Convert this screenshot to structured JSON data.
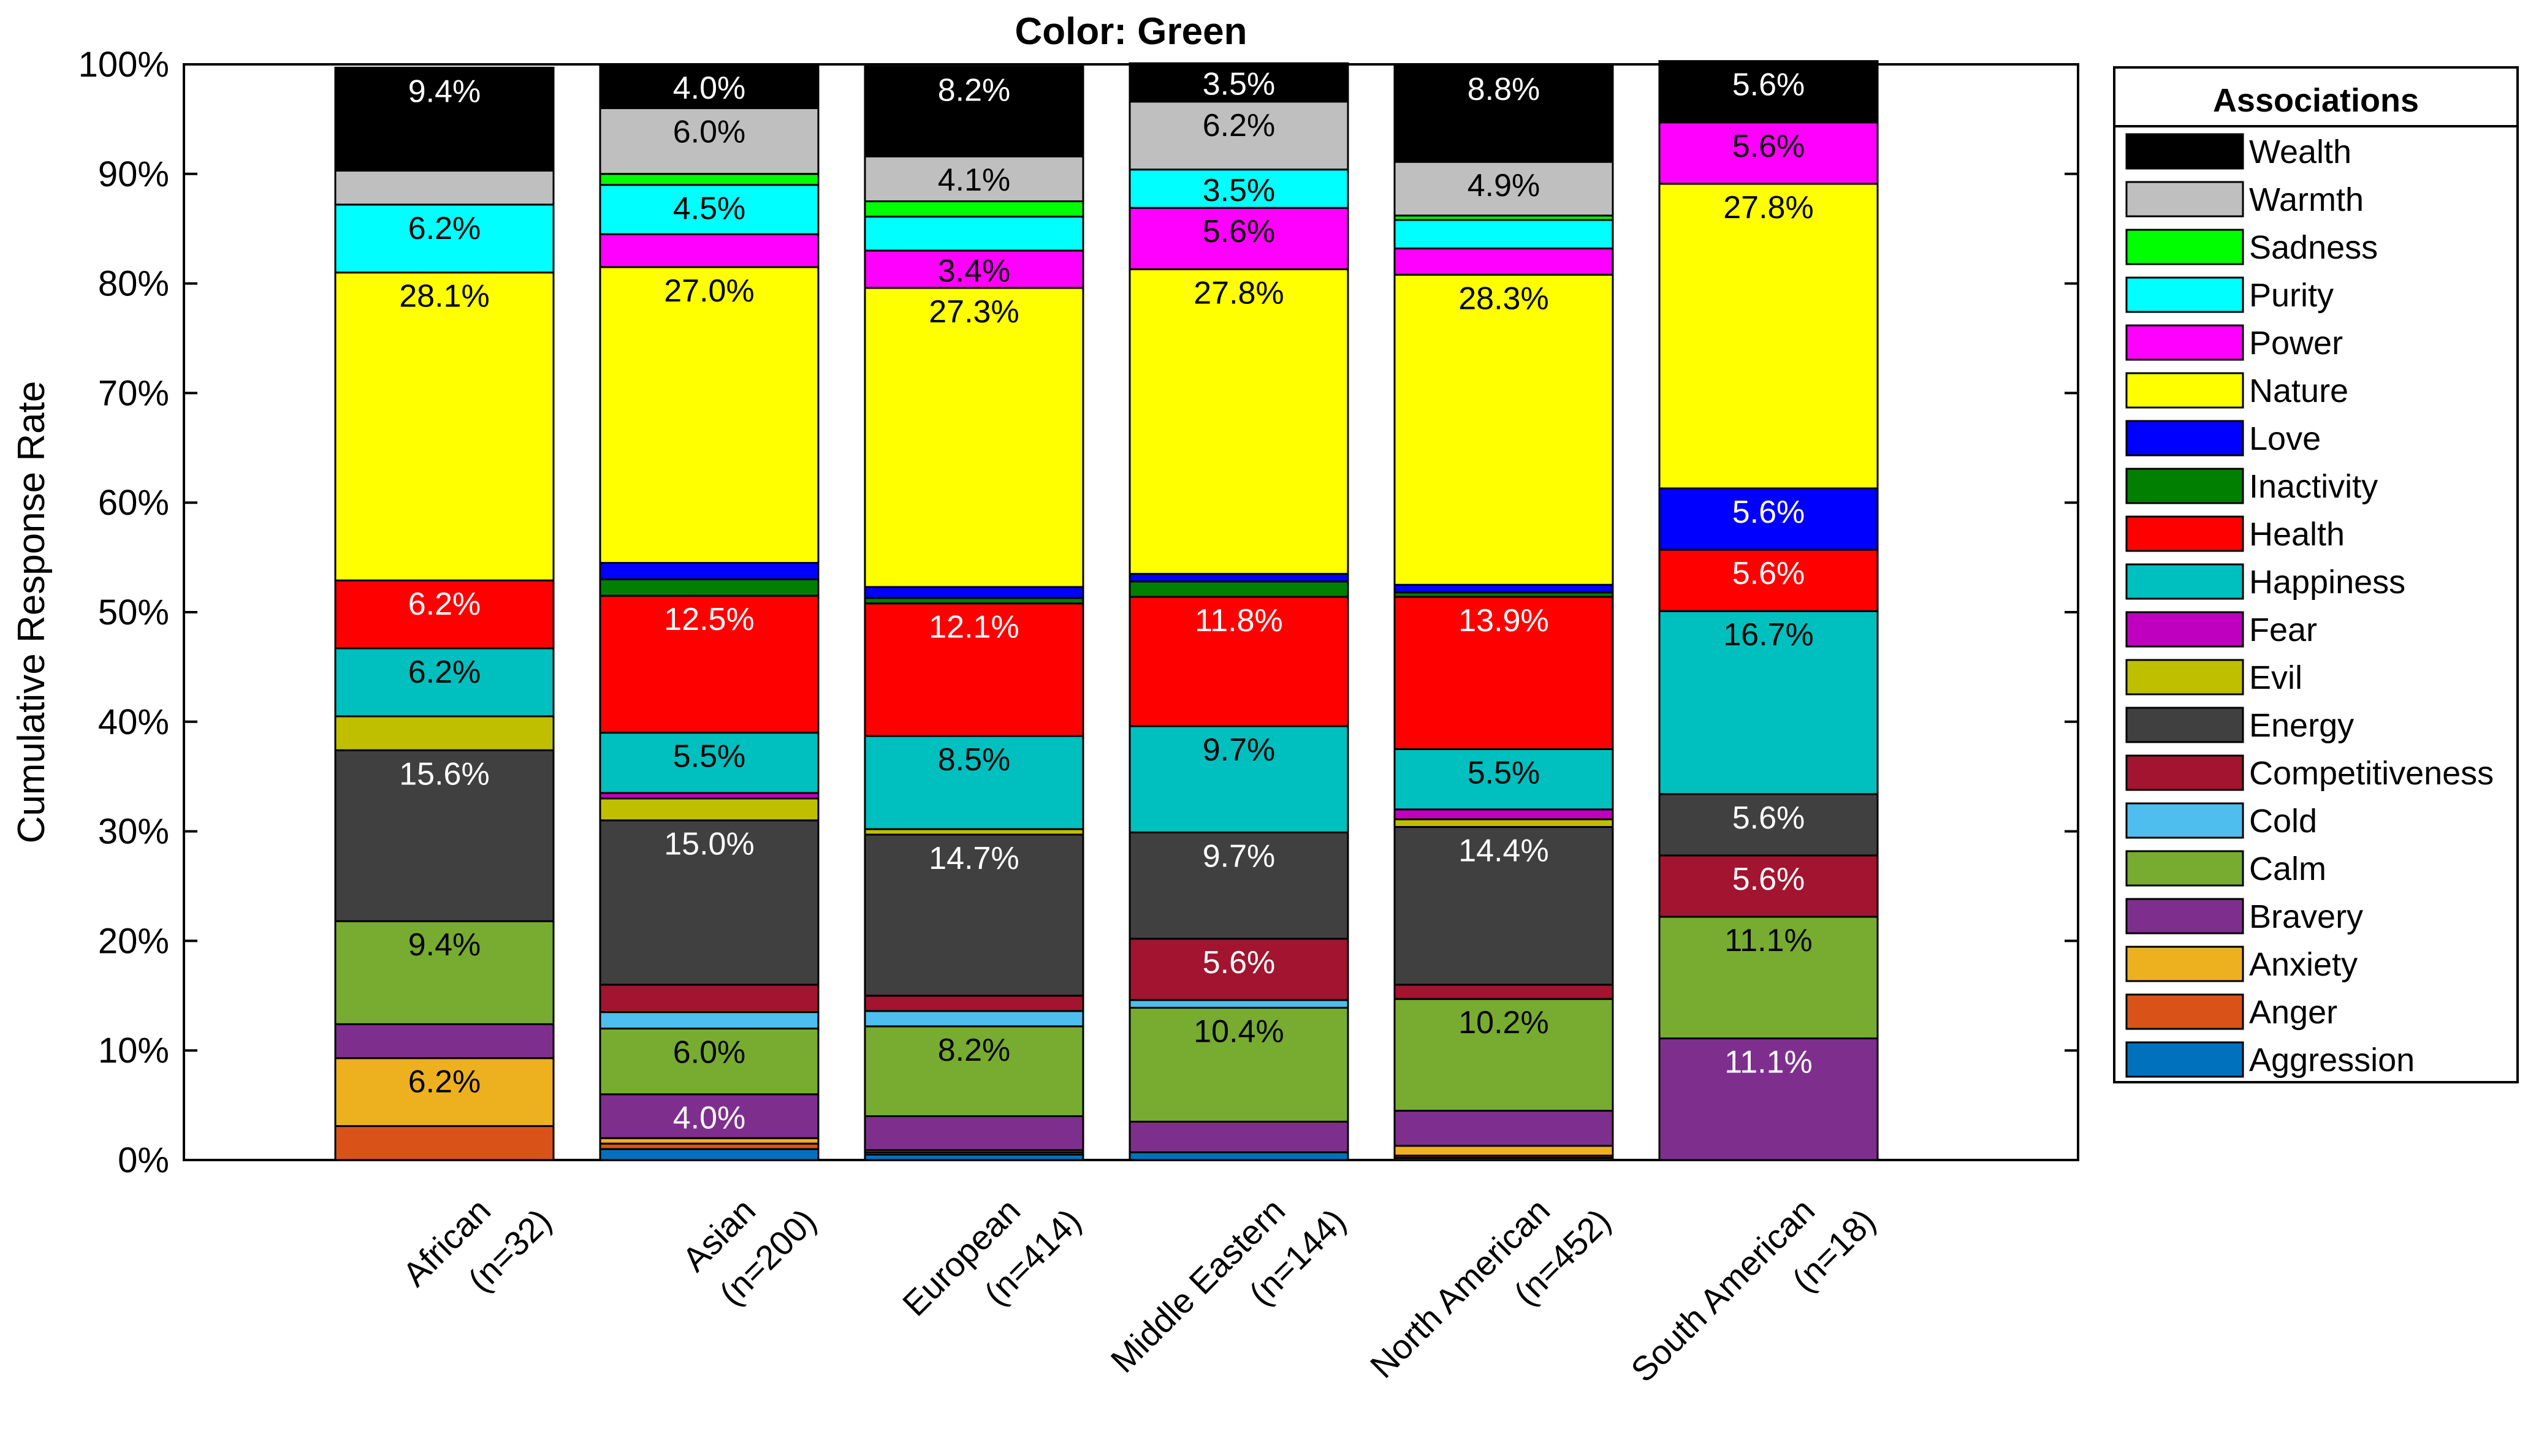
{
  "chart_data": {
    "type": "bar",
    "stacked": true,
    "title": "Color: Green",
    "xlabel": "",
    "ylabel": "Cumulative Response Rate",
    "ylim": [
      0,
      100
    ],
    "yticks": [
      "0%",
      "10%",
      "20%",
      "30%",
      "40%",
      "50%",
      "60%",
      "70%",
      "80%",
      "90%",
      "100%"
    ],
    "legend_title": "Associations",
    "legend_position": "right",
    "categories": [
      [
        "African",
        "(n=32)"
      ],
      [
        "Asian",
        "(n=200)"
      ],
      [
        "European",
        "(n=414)"
      ],
      [
        "Middle Eastern",
        "(n=144)"
      ],
      [
        "North American",
        "(n=452)"
      ],
      [
        "South American",
        "(n=18)"
      ]
    ],
    "series": [
      {
        "name": "Aggression",
        "color": "#0072BD",
        "text_color": "#000000",
        "values": [
          0.0,
          1.0,
          0.5,
          0.7,
          0.2,
          0.0
        ]
      },
      {
        "name": "Anger",
        "color": "#D95319",
        "text_color": "#000000",
        "values": [
          3.1,
          0.5,
          0.2,
          0.0,
          0.2,
          0.0
        ]
      },
      {
        "name": "Anxiety",
        "color": "#EDB120",
        "text_color": "#000000",
        "values": [
          6.2,
          0.5,
          0.2,
          0.0,
          0.9,
          0.0
        ]
      },
      {
        "name": "Bravery",
        "color": "#7E2F8E",
        "text_color": "#ffffff",
        "values": [
          3.1,
          4.0,
          3.1,
          2.8,
          3.2,
          11.1
        ]
      },
      {
        "name": "Calm",
        "color": "#77AC30",
        "text_color": "#000000",
        "values": [
          9.4,
          6.0,
          8.2,
          10.4,
          10.2,
          11.1
        ]
      },
      {
        "name": "Cold",
        "color": "#4DBEEE",
        "text_color": "#000000",
        "values": [
          0.0,
          1.5,
          1.4,
          0.7,
          0.0,
          0.0
        ]
      },
      {
        "name": "Competitiveness",
        "color": "#A2142F",
        "text_color": "#ffffff",
        "values": [
          0.0,
          2.5,
          1.4,
          5.6,
          1.3,
          5.6
        ]
      },
      {
        "name": "Energy",
        "color": "#404040",
        "text_color": "#ffffff",
        "values": [
          15.6,
          15.0,
          14.7,
          9.7,
          14.4,
          5.6
        ]
      },
      {
        "name": "Evil",
        "color": "#BFBF00",
        "text_color": "#000000",
        "values": [
          3.1,
          2.0,
          0.5,
          0.0,
          0.7,
          0.0
        ]
      },
      {
        "name": "Fear",
        "color": "#BF00BF",
        "text_color": "#000000",
        "values": [
          0.0,
          0.5,
          0.0,
          0.0,
          0.9,
          0.0
        ]
      },
      {
        "name": "Happiness",
        "color": "#00BFBF",
        "text_color": "#000000",
        "values": [
          6.2,
          5.5,
          8.5,
          9.7,
          5.5,
          16.7
        ]
      },
      {
        "name": "Health",
        "color": "#FF0000",
        "text_color": "#ffffff",
        "values": [
          6.2,
          12.5,
          12.1,
          11.8,
          13.9,
          5.6
        ]
      },
      {
        "name": "Inactivity",
        "color": "#007F00",
        "text_color": "#ffffff",
        "values": [
          0.0,
          1.5,
          0.5,
          1.4,
          0.4,
          0.0
        ]
      },
      {
        "name": "Love",
        "color": "#0000FF",
        "text_color": "#ffffff",
        "values": [
          0.0,
          1.5,
          1.0,
          0.7,
          0.7,
          5.6
        ]
      },
      {
        "name": "Nature",
        "color": "#FFFF00",
        "text_color": "#000000",
        "values": [
          28.1,
          27.0,
          27.3,
          27.8,
          28.3,
          27.8
        ]
      },
      {
        "name": "Power",
        "color": "#FF00FF",
        "text_color": "#000000",
        "values": [
          0.0,
          3.0,
          3.4,
          5.6,
          2.4,
          5.6
        ]
      },
      {
        "name": "Purity",
        "color": "#00FFFF",
        "text_color": "#000000",
        "values": [
          6.2,
          4.5,
          3.1,
          3.5,
          2.6,
          0.0
        ]
      },
      {
        "name": "Sadness",
        "color": "#00FF00",
        "text_color": "#000000",
        "values": [
          0.0,
          1.0,
          1.4,
          0.0,
          0.4,
          0.0
        ]
      },
      {
        "name": "Warmth",
        "color": "#BFBFBF",
        "text_color": "#000000",
        "values": [
          3.1,
          6.0,
          4.1,
          6.2,
          4.9,
          0.0
        ]
      },
      {
        "name": "Wealth",
        "color": "#000000",
        "text_color": "#ffffff",
        "values": [
          9.4,
          4.0,
          8.2,
          3.5,
          8.8,
          5.6
        ]
      }
    ],
    "value_labels": [
      {
        "category": 0,
        "series": "Anxiety",
        "text": "6.2%"
      },
      {
        "category": 0,
        "series": "Calm",
        "text": "9.4%"
      },
      {
        "category": 0,
        "series": "Energy",
        "text": "15.6%"
      },
      {
        "category": 0,
        "series": "Happiness",
        "text": "6.2%"
      },
      {
        "category": 0,
        "series": "Health",
        "text": "6.2%"
      },
      {
        "category": 0,
        "series": "Nature",
        "text": "28.1%"
      },
      {
        "category": 0,
        "series": "Purity",
        "text": "6.2%"
      },
      {
        "category": 0,
        "series": "Wealth",
        "text": "9.4%"
      },
      {
        "category": 1,
        "series": "Bravery",
        "text": "4.0%"
      },
      {
        "category": 1,
        "series": "Calm",
        "text": "6.0%"
      },
      {
        "category": 1,
        "series": "Energy",
        "text": "15.0%"
      },
      {
        "category": 1,
        "series": "Happiness",
        "text": "5.5%"
      },
      {
        "category": 1,
        "series": "Health",
        "text": "12.5%"
      },
      {
        "category": 1,
        "series": "Nature",
        "text": "27.0%"
      },
      {
        "category": 1,
        "series": "Purity",
        "text": "4.5%"
      },
      {
        "category": 1,
        "series": "Warmth",
        "text": "6.0%"
      },
      {
        "category": 1,
        "series": "Wealth",
        "text": "4.0%"
      },
      {
        "category": 2,
        "series": "Calm",
        "text": "8.2%"
      },
      {
        "category": 2,
        "series": "Energy",
        "text": "14.7%"
      },
      {
        "category": 2,
        "series": "Happiness",
        "text": "8.5%"
      },
      {
        "category": 2,
        "series": "Health",
        "text": "12.1%"
      },
      {
        "category": 2,
        "series": "Nature",
        "text": "27.3%"
      },
      {
        "category": 2,
        "series": "Power",
        "text": "3.4%"
      },
      {
        "category": 2,
        "series": "Warmth",
        "text": "4.1%"
      },
      {
        "category": 2,
        "series": "Wealth",
        "text": "8.2%"
      },
      {
        "category": 3,
        "series": "Calm",
        "text": "10.4%"
      },
      {
        "category": 3,
        "series": "Competitiveness",
        "text": "5.6%"
      },
      {
        "category": 3,
        "series": "Energy",
        "text": "9.7%"
      },
      {
        "category": 3,
        "series": "Happiness",
        "text": "9.7%"
      },
      {
        "category": 3,
        "series": "Health",
        "text": "11.8%"
      },
      {
        "category": 3,
        "series": "Nature",
        "text": "27.8%"
      },
      {
        "category": 3,
        "series": "Power",
        "text": "5.6%"
      },
      {
        "category": 3,
        "series": "Purity",
        "text": "3.5%"
      },
      {
        "category": 3,
        "series": "Warmth",
        "text": "6.2%"
      },
      {
        "category": 3,
        "series": "Wealth",
        "text": "3.5%"
      },
      {
        "category": 4,
        "series": "Calm",
        "text": "10.2%"
      },
      {
        "category": 4,
        "series": "Energy",
        "text": "14.4%"
      },
      {
        "category": 4,
        "series": "Happiness",
        "text": "5.5%"
      },
      {
        "category": 4,
        "series": "Health",
        "text": "13.9%"
      },
      {
        "category": 4,
        "series": "Nature",
        "text": "28.3%"
      },
      {
        "category": 4,
        "series": "Warmth",
        "text": "4.9%"
      },
      {
        "category": 4,
        "series": "Wealth",
        "text": "8.8%"
      },
      {
        "category": 5,
        "series": "Bravery",
        "text": "11.1%"
      },
      {
        "category": 5,
        "series": "Calm",
        "text": "11.1%"
      },
      {
        "category": 5,
        "series": "Competitiveness",
        "text": "5.6%"
      },
      {
        "category": 5,
        "series": "Energy",
        "text": "5.6%"
      },
      {
        "category": 5,
        "series": "Happiness",
        "text": "16.7%"
      },
      {
        "category": 5,
        "series": "Health",
        "text": "5.6%"
      },
      {
        "category": 5,
        "series": "Love",
        "text": "5.6%"
      },
      {
        "category": 5,
        "series": "Nature",
        "text": "27.8%"
      },
      {
        "category": 5,
        "series": "Power",
        "text": "5.6%"
      },
      {
        "category": 5,
        "series": "Wealth",
        "text": "5.6%"
      }
    ]
  }
}
